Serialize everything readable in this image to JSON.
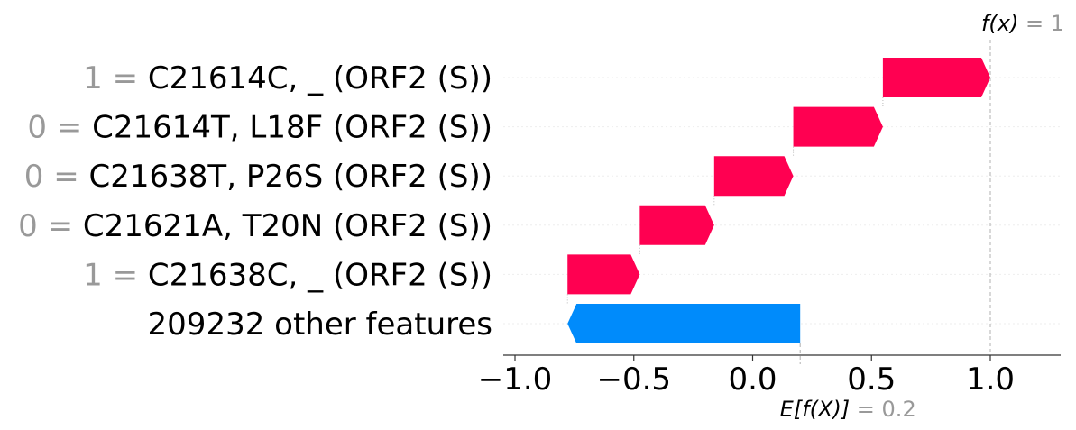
{
  "chart_data": {
    "type": "waterfall",
    "fx": {
      "label": "f(x)",
      "eq": " = ",
      "value": "1"
    },
    "base": {
      "label": "E[f(X)]",
      "eq": " = ",
      "value": "0.2"
    },
    "base_value": 0.2,
    "final_value": 1.0,
    "xlim": [
      -1.1,
      1.3
    ],
    "ticks": [
      -1.0,
      -0.5,
      0.0,
      0.5,
      1.0
    ],
    "tick_labels": [
      "−1.0",
      "−0.5",
      "0.0",
      "0.5",
      "1.0"
    ],
    "features": [
      {
        "value": "1",
        "eq": " = ",
        "name": "C21614C, _ (ORF2 (S))",
        "start": 0.548,
        "end": 1.0,
        "sign": "positive"
      },
      {
        "value": "0",
        "eq": " = ",
        "name": "C21614T, L18F (ORF2 (S))",
        "start": 0.171,
        "end": 0.548,
        "sign": "positive"
      },
      {
        "value": "0",
        "eq": " = ",
        "name": "C21638T, P26S (ORF2 (S))",
        "start": -0.162,
        "end": 0.171,
        "sign": "positive"
      },
      {
        "value": "0",
        "eq": " = ",
        "name": "C21621A, T20N (ORF2 (S))",
        "start": -0.475,
        "end": -0.162,
        "sign": "positive"
      },
      {
        "value": "1",
        "eq": " = ",
        "name": "C21638C, _ (ORF2 (S))",
        "start": -0.779,
        "end": -0.475,
        "sign": "positive"
      },
      {
        "value": "",
        "eq": "",
        "name": "209232 other features",
        "start": 0.2,
        "end": -0.779,
        "sign": "negative"
      }
    ],
    "colors": {
      "positive": "#ff0051",
      "negative": "#008bfb",
      "guide": "#cccccc"
    }
  }
}
